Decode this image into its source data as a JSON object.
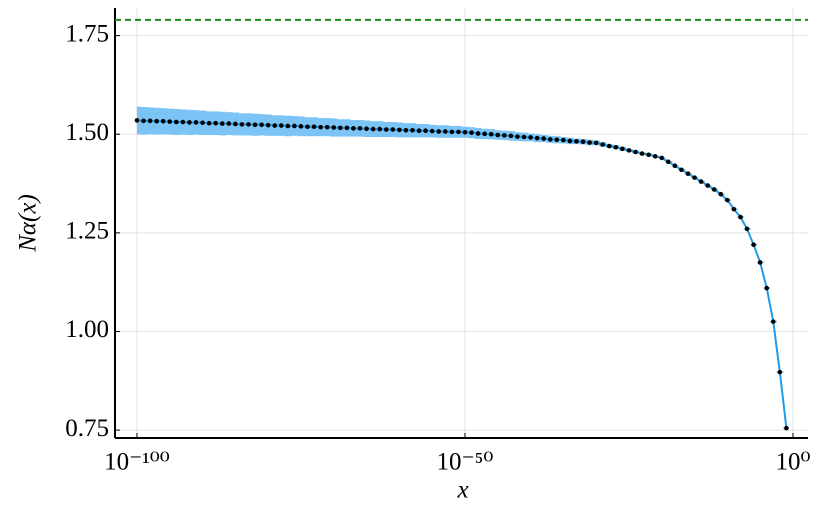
{
  "chart_data": {
    "type": "line",
    "xlabel": "x",
    "ylabel": "Nα(x)",
    "xscale": "log",
    "grid": true,
    "xlim": [
      4.5e-104,
      195
    ],
    "ylim": [
      0.73,
      1.82
    ],
    "xticks": [
      {
        "value": 1e-100,
        "label": "10⁻¹⁰⁰"
      },
      {
        "value": 1e-50,
        "label": "10⁻⁵⁰"
      },
      {
        "value": 1,
        "label": "10⁰"
      }
    ],
    "yticks": [
      0.75,
      {
        "value": 1,
        "label": "1.00"
      },
      1.25,
      {
        "value": 1.5,
        "label": "1.50"
      },
      1.75
    ],
    "hline": {
      "value": 1.79,
      "color": "#1a8a1a",
      "style": "dashed"
    },
    "series": [
      {
        "color": "#1f9bea",
        "band_color": "#7cc4f5",
        "marker_color": "#000000",
        "x": [
          1e-100,
          1e-99,
          1e-98,
          1e-97,
          1e-96,
          1e-95,
          1e-94,
          1e-93,
          1e-92,
          1e-91,
          1e-90,
          1e-89,
          1e-88,
          1e-87,
          1e-86,
          1e-85,
          1e-84,
          1e-83,
          1e-82,
          1e-81,
          1e-80,
          1e-79,
          1e-78,
          1e-77,
          1e-76,
          1e-75,
          1e-74,
          1e-73,
          1e-72,
          1e-71,
          1e-70,
          1e-69,
          1e-68,
          1e-67,
          1e-66,
          1e-65,
          1e-64,
          1e-63,
          1e-62,
          1e-61,
          1e-60,
          1e-59,
          1e-58,
          1e-57,
          1e-56,
          1e-55,
          1e-54,
          1e-53,
          1e-52,
          1e-51,
          1e-50,
          1e-49,
          1e-48,
          1e-47,
          1e-46,
          1e-45,
          1e-44,
          1e-43,
          1e-42,
          1e-41,
          1e-40,
          1e-39,
          1e-38,
          1e-37,
          1e-36,
          1e-35,
          1e-34,
          1e-33,
          1e-32,
          1e-31,
          1e-30,
          1e-29,
          1e-28,
          1e-27,
          1e-26,
          1e-25,
          1e-24,
          1e-23,
          1e-22,
          1e-21,
          1e-20,
          1e-19,
          1e-18,
          1e-17,
          1e-16,
          1e-15,
          1e-14,
          1e-13,
          1e-12,
          1e-11,
          1e-10,
          1e-09,
          1e-08,
          1e-07,
          1e-06,
          1e-05,
          0.0001,
          0.001,
          0.01,
          0.1
        ],
        "values": [
          1.535,
          1.534,
          1.534,
          1.533,
          1.533,
          1.532,
          1.531,
          1.531,
          1.53,
          1.53,
          1.529,
          1.528,
          1.528,
          1.527,
          1.527,
          1.526,
          1.525,
          1.525,
          1.524,
          1.524,
          1.523,
          1.522,
          1.522,
          1.521,
          1.521,
          1.52,
          1.519,
          1.519,
          1.518,
          1.518,
          1.517,
          1.516,
          1.516,
          1.515,
          1.515,
          1.514,
          1.513,
          1.513,
          1.512,
          1.512,
          1.511,
          1.51,
          1.51,
          1.509,
          1.509,
          1.508,
          1.507,
          1.507,
          1.506,
          1.506,
          1.505,
          1.504,
          1.502,
          1.501,
          1.5,
          1.498,
          1.497,
          1.496,
          1.494,
          1.493,
          1.492,
          1.49,
          1.489,
          1.487,
          1.486,
          1.485,
          1.483,
          1.482,
          1.481,
          1.479,
          1.478,
          1.474,
          1.47,
          1.467,
          1.463,
          1.459,
          1.455,
          1.451,
          1.448,
          1.444,
          1.44,
          1.43,
          1.42,
          1.41,
          1.4,
          1.39,
          1.38,
          1.37,
          1.36,
          1.348,
          1.333,
          1.31,
          1.29,
          1.26,
          1.22,
          1.175,
          1.11,
          1.025,
          0.897,
          0.755
        ],
        "errors": [
          0.035,
          0.035,
          0.034,
          0.034,
          0.033,
          0.033,
          0.033,
          0.032,
          0.032,
          0.031,
          0.031,
          0.03,
          0.03,
          0.03,
          0.029,
          0.029,
          0.028,
          0.028,
          0.028,
          0.027,
          0.027,
          0.026,
          0.026,
          0.026,
          0.025,
          0.025,
          0.024,
          0.024,
          0.023,
          0.023,
          0.023,
          0.022,
          0.022,
          0.021,
          0.021,
          0.021,
          0.02,
          0.02,
          0.019,
          0.019,
          0.019,
          0.018,
          0.018,
          0.017,
          0.017,
          0.016,
          0.016,
          0.016,
          0.015,
          0.015,
          0.014,
          0.014,
          0.014,
          0.013,
          0.013,
          0.012,
          0.012,
          0.012,
          0.011,
          0.011,
          0.01,
          0.01,
          0.009,
          0.009,
          0.009,
          0.008,
          0.008,
          0.007,
          0.007,
          0.007,
          0.006,
          0.006,
          0.005,
          0.005,
          0.005,
          0.004,
          0.004,
          0.003,
          0.003,
          0.002,
          0.002,
          0.002,
          0.002,
          0.002,
          0.002,
          0.002,
          0.002,
          0.002,
          0.002,
          0.002,
          0.002,
          0.002,
          0.002,
          0.002,
          0.002,
          0.002,
          0.002,
          0.002,
          0.002,
          0.002
        ]
      }
    ]
  }
}
